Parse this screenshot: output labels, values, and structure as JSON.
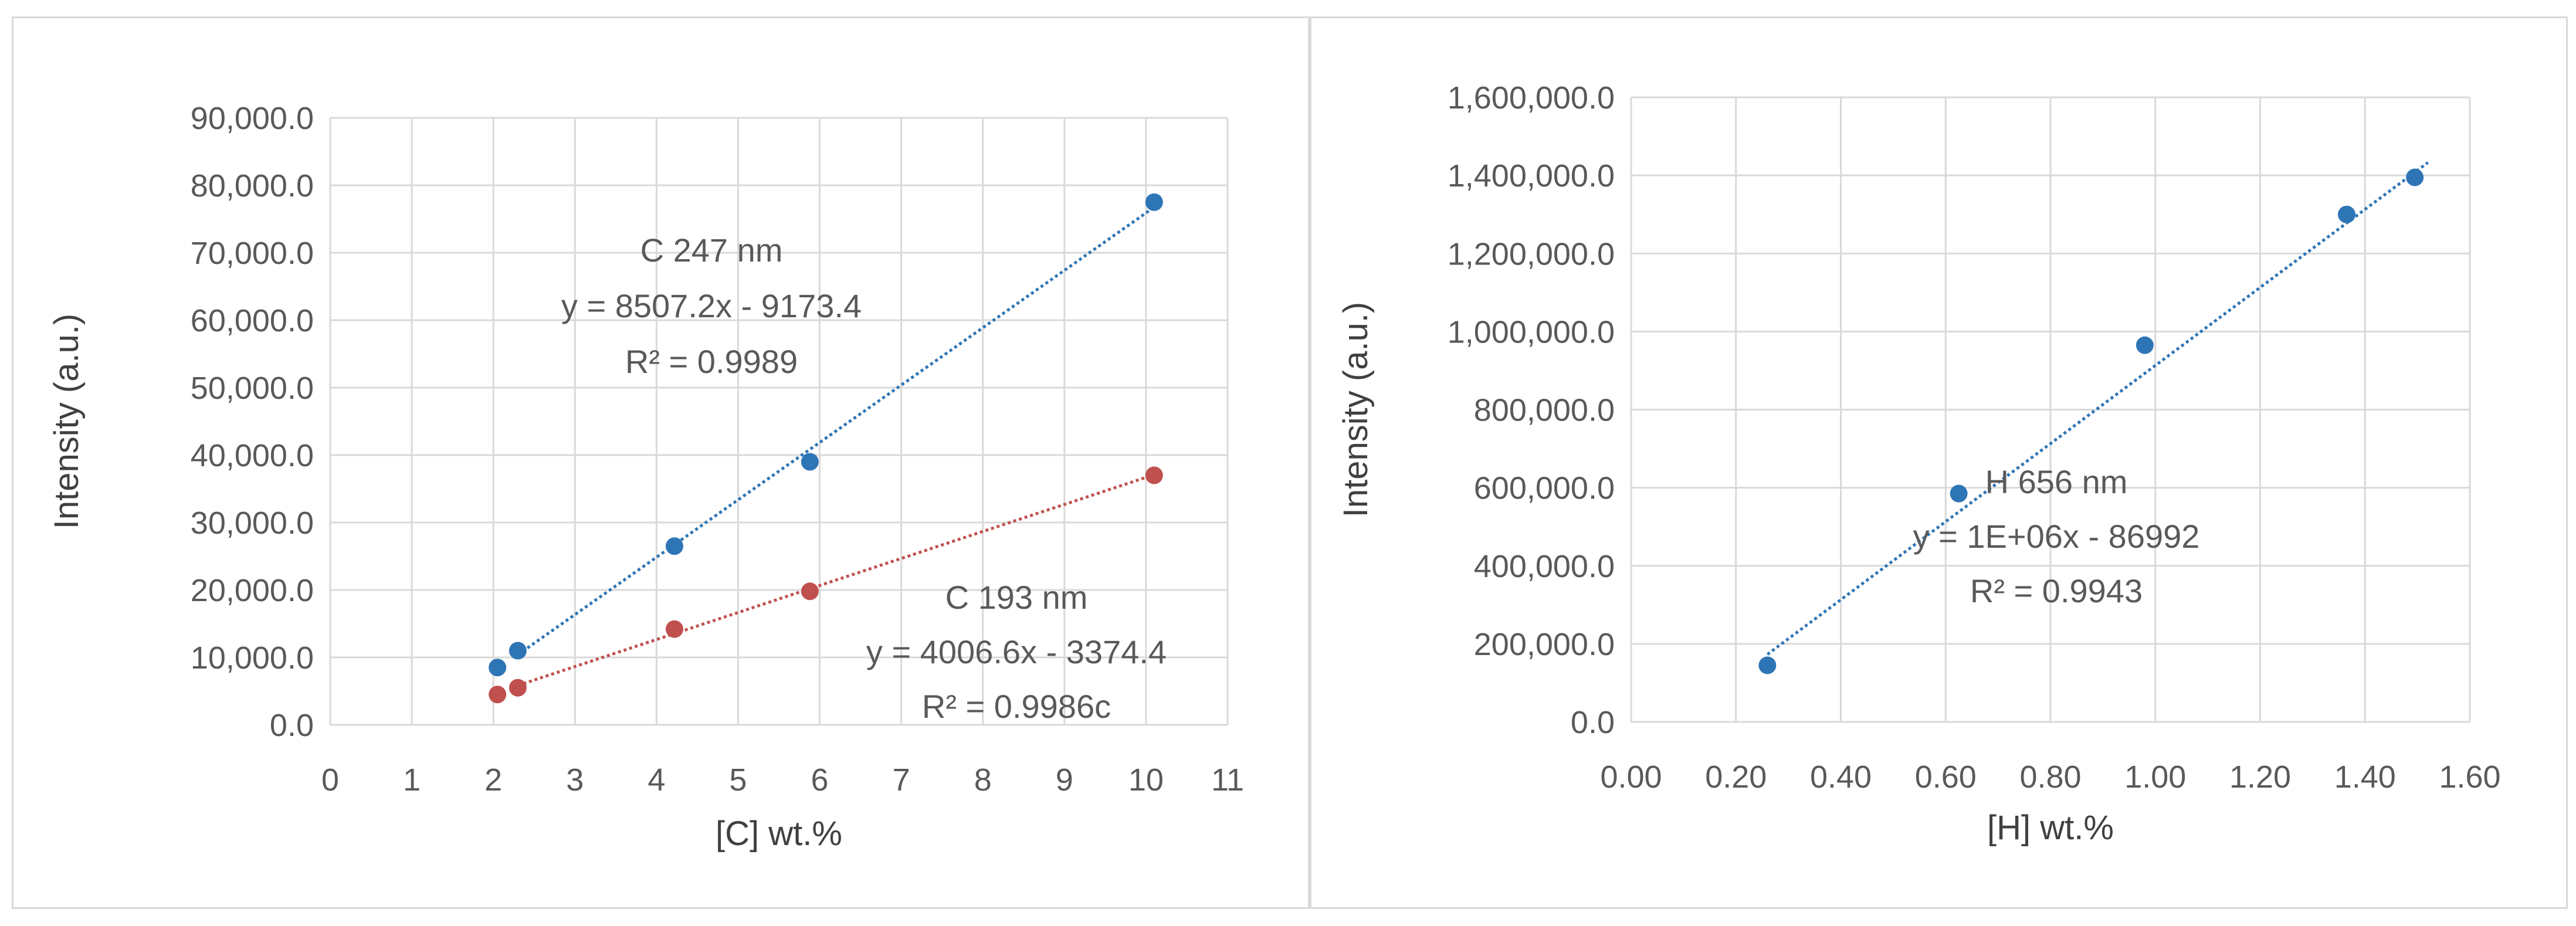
{
  "chart_data": [
    {
      "type": "scatter",
      "title": "",
      "xlabel": "[C] wt.%",
      "ylabel": "Intensity (a.u.)",
      "xlim": [
        0,
        11
      ],
      "ylim": [
        0,
        90000
      ],
      "x_ticks": [
        "0",
        "1",
        "2",
        "3",
        "4",
        "5",
        "6",
        "7",
        "8",
        "9",
        "10",
        "11"
      ],
      "y_ticks": [
        "0.0",
        "10,000.0",
        "20,000.0",
        "30,000.0",
        "40,000.0",
        "50,000.0",
        "60,000.0",
        "70,000.0",
        "80,000.0",
        "90,000.0"
      ],
      "grid": true,
      "series": [
        {
          "color": "#2e75b6",
          "points": [
            [
              2.05,
              8500
            ],
            [
              2.3,
              11000
            ],
            [
              4.22,
              26500
            ],
            [
              5.88,
              39000
            ],
            [
              10.1,
              77500
            ]
          ],
          "trendline": {
            "slope": 8507.2,
            "intercept": -9173.4,
            "x_range": [
              2.3,
              10.1
            ]
          },
          "annotation": [
            "C 247 nm",
            "y = 8507.2x - 9173.4",
            "R² = 0.9989"
          ]
        },
        {
          "color": "#c0504d",
          "points": [
            [
              2.05,
              4500
            ],
            [
              2.3,
              5500
            ],
            [
              4.22,
              14200
            ],
            [
              5.88,
              19800
            ],
            [
              10.1,
              37000
            ]
          ],
          "trendline": {
            "slope": 4006.6,
            "intercept": -3374.4,
            "x_range": [
              2.3,
              10.1
            ]
          },
          "annotation": [
            "C 193 nm",
            "y = 4006.6x - 3374.4",
            "R² = 0.9986c"
          ]
        }
      ]
    },
    {
      "type": "scatter",
      "title": "",
      "xlabel": "[H] wt.%",
      "ylabel": "Intensity (a.u.)",
      "xlim": [
        0,
        1.6
      ],
      "ylim": [
        0,
        1600000
      ],
      "x_ticks": [
        "0.00",
        "0.20",
        "0.40",
        "0.60",
        "0.80",
        "1.00",
        "1.20",
        "1.40",
        "1.60"
      ],
      "y_ticks": [
        "0.0",
        "200,000.0",
        "400,000.0",
        "600,000.0",
        "800,000.0",
        "1,000,000.0",
        "1,200,000.0",
        "1,400,000.0",
        "1,600,000.0"
      ],
      "grid": true,
      "series": [
        {
          "color": "#2e75b6",
          "points": [
            [
              0.26,
              145000
            ],
            [
              0.625,
              585000
            ],
            [
              0.98,
              965000
            ],
            [
              1.365,
              1300000
            ],
            [
              1.495,
              1395000
            ]
          ],
          "trendline": {
            "slope": 1000000,
            "intercept": -86992,
            "x_range": [
              0.26,
              1.52
            ]
          },
          "annotation": [
            "H 656  nm",
            "y = 1E+06x - 86992",
            "R² = 0.9943"
          ]
        }
      ]
    }
  ]
}
